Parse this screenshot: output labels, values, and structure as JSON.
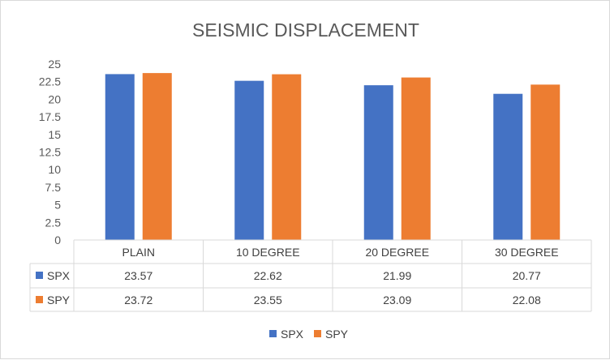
{
  "chart_data": {
    "type": "bar",
    "title": "SEISMIC DISPLACEMENT",
    "categories": [
      "PLAIN",
      "10 DEGREE",
      "20 DEGREE",
      "30 DEGREE"
    ],
    "series": [
      {
        "name": "SPX",
        "color": "#4472c4",
        "values": [
          23.57,
          22.62,
          21.99,
          20.77
        ],
        "labels": [
          "23.57",
          "22.62",
          "21.99",
          "20.77"
        ]
      },
      {
        "name": "SPY",
        "color": "#ed7d31",
        "values": [
          23.72,
          23.55,
          23.09,
          22.08
        ],
        "labels": [
          "23.72",
          "23.55",
          "23.09",
          "22.08"
        ]
      }
    ],
    "ylim": [
      0,
      25
    ],
    "yticks": [
      "0",
      "2.5",
      "5",
      "7.5",
      "10",
      "12.5",
      "15",
      "17.5",
      "20",
      "22.5",
      "25"
    ],
    "grid": false,
    "data_table": true,
    "legend_position": "bottom"
  }
}
